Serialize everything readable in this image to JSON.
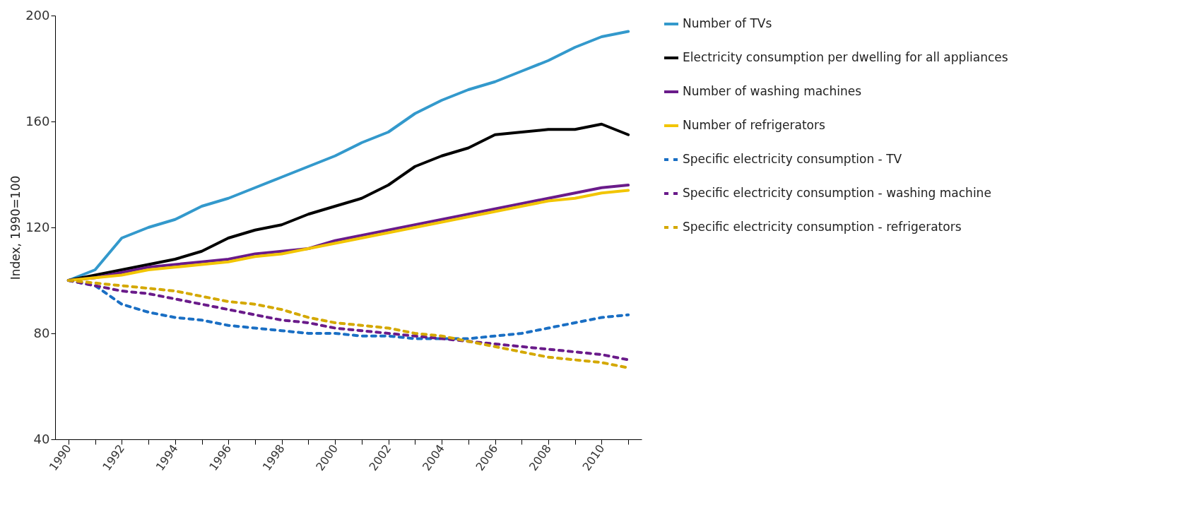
{
  "chart_data": {
    "type": "line",
    "ylabel": "Index, 1990=100",
    "x": [
      1990,
      1991,
      1992,
      1993,
      1994,
      1995,
      1996,
      1997,
      1998,
      1999,
      2000,
      2001,
      2002,
      2003,
      2004,
      2005,
      2006,
      2007,
      2008,
      2009,
      2010,
      2011
    ],
    "xlim": [
      1989.5,
      2011.5
    ],
    "xticks": [
      1990,
      {
        "value": 1991,
        "label": null
      },
      1992,
      {
        "value": 1993,
        "label": null
      },
      1994,
      {
        "value": 1995,
        "label": null
      },
      1996,
      {
        "value": 1997,
        "label": null
      },
      1998,
      {
        "value": 1999,
        "label": null
      },
      2000,
      {
        "value": 2001,
        "label": null
      },
      2002,
      {
        "value": 2003,
        "label": null
      },
      2004,
      {
        "value": 2005,
        "label": null
      },
      2006,
      {
        "value": 2007,
        "label": null
      },
      2008,
      {
        "value": 2009,
        "label": null
      },
      2010,
      {
        "value": 2011,
        "label": null
      }
    ],
    "ylim": [
      40,
      200
    ],
    "yticks": [
      40,
      80,
      120,
      160,
      200
    ],
    "grid": false,
    "legend": "right",
    "series": [
      {
        "name": "Number of TVs",
        "color": "#3399cc",
        "line_style": "solid",
        "values": [
          100,
          104,
          116,
          120,
          123,
          128,
          131,
          135,
          139,
          143,
          147,
          152,
          156,
          163,
          168,
          172,
          175,
          179,
          183,
          188,
          192,
          194
        ]
      },
      {
        "name": "Electricity consumption per dwelling for all appliances",
        "color": "#000000",
        "line_style": "solid",
        "values": [
          100,
          102,
          104,
          106,
          108,
          111,
          116,
          119,
          121,
          125,
          128,
          131,
          136,
          143,
          147,
          150,
          155,
          156,
          157,
          157,
          159,
          155
        ]
      },
      {
        "name": "Number of washing machines",
        "color": "#6a1b8a",
        "line_style": "solid",
        "values": [
          100,
          101,
          103,
          105,
          106,
          107,
          108,
          110,
          111,
          112,
          115,
          117,
          119,
          121,
          123,
          125,
          127,
          129,
          131,
          133,
          135,
          136
        ]
      },
      {
        "name": "Number of refrigerators",
        "color": "#f2c500",
        "line_style": "solid",
        "values": [
          100,
          101,
          102,
          104,
          105,
          106,
          107,
          109,
          110,
          112,
          114,
          116,
          118,
          120,
          122,
          124,
          126,
          128,
          130,
          131,
          133,
          134
        ]
      },
      {
        "name": "Specific electricity consumption - TV",
        "color": "#1a6fc4",
        "line_style": "dashed",
        "values": [
          100,
          98,
          91,
          88,
          86,
          85,
          83,
          82,
          81,
          80,
          80,
          79,
          79,
          78,
          78,
          78,
          79,
          80,
          82,
          84,
          86,
          87
        ]
      },
      {
        "name": "Specific electricity consumption - washing machine",
        "color": "#6a1b8a",
        "line_style": "dashed",
        "values": [
          100,
          98,
          96,
          95,
          93,
          91,
          89,
          87,
          85,
          84,
          82,
          81,
          80,
          79,
          78,
          77,
          76,
          75,
          74,
          73,
          72,
          70
        ]
      },
      {
        "name": "Specific electricity consumption - refrigerators",
        "color": "#d4a800",
        "line_style": "dashed",
        "values": [
          100,
          99,
          98,
          97,
          96,
          94,
          92,
          91,
          89,
          86,
          84,
          83,
          82,
          80,
          79,
          77,
          75,
          73,
          71,
          70,
          69,
          67
        ]
      }
    ]
  }
}
